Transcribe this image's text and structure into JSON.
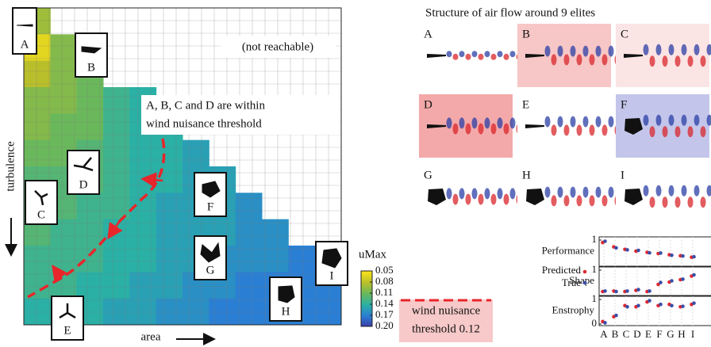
{
  "heatmap": {
    "y_label": "turbulence",
    "x_label": "area",
    "annotations": [
      "(not reachable)",
      "A, B, C and D are within",
      "wind nuisance threshold"
    ],
    "elites": [
      "A",
      "B",
      "C",
      "D",
      "E",
      "F",
      "G",
      "H",
      "I"
    ],
    "colormap": [
      "#f9e21b",
      "#b8bf2a",
      "#6ab85c",
      "#2ab0a5",
      "#2a7fd4",
      "#3b3aa8"
    ],
    "cells": [
      [
        0.09
      ],
      [
        0.06,
        0.1
      ],
      [
        0.08,
        0.1,
        0.11
      ],
      [
        0.1,
        0.1,
        0.11,
        0.13,
        0.14
      ],
      [
        0.1,
        0.11,
        0.11,
        0.13,
        0.14,
        0.14
      ],
      [
        0.11,
        0.11,
        0.12,
        0.13,
        0.14,
        0.14,
        0.15
      ],
      [
        0.12,
        0.12,
        0.12,
        0.13,
        0.14,
        0.14,
        0.15,
        0.15
      ],
      [
        0.12,
        0.12,
        0.13,
        0.13,
        0.14,
        0.15,
        0.15,
        0.15,
        0.16
      ],
      [
        0.12,
        0.13,
        0.13,
        0.14,
        0.14,
        0.15,
        0.15,
        0.15,
        0.16,
        0.16
      ],
      [
        0.13,
        0.13,
        0.13,
        0.14,
        0.14,
        0.15,
        0.15,
        0.16,
        0.16,
        0.16,
        0.17,
        0.17
      ],
      [
        0.13,
        0.13,
        0.14,
        0.14,
        0.15,
        0.15,
        0.16,
        0.16,
        0.17,
        0.17,
        0.17,
        0.17
      ],
      [
        0.14,
        0.14,
        0.14,
        0.15,
        0.15,
        0.16,
        0.16,
        0.17,
        0.17,
        0.17,
        0.17,
        0.17
      ]
    ],
    "colorbar": {
      "title": "uMax",
      "lim": [
        0.05,
        {
          "value": 0.2,
          "label": "0.20"
        }
      ],
      "ticks": [
        0.05,
        0.08,
        0.11,
        0.14,
        0.17,
        {
          "value": 0.2,
          "label": "0.20"
        }
      ]
    },
    "threshold_color": "#e8252a",
    "threshold_legend": [
      "wind nuisance",
      "threshold 0.12"
    ]
  },
  "flow": {
    "title": "Structure of air flow around 9 elites",
    "panels": [
      "A",
      "B",
      "C",
      "D",
      "E",
      "F",
      "G",
      "H",
      "I"
    ]
  },
  "predictions": {
    "categories": [
      "A",
      "B",
      "C",
      "D",
      "E",
      "F",
      "G",
      "H",
      "I"
    ],
    "legend": {
      "predicted": "Predicted",
      "true": "True"
    },
    "colors": {
      "predicted": "#e0282e",
      "true": "#3a4fa8"
    },
    "panels": [
      {
        "label": "Performance",
        "ylim": [
          0,
          1
        ],
        "yticks": [
          1
        ],
        "predicted": [
          0.9,
          0.72,
          0.62,
          0.55,
          0.5,
          0.45,
          0.4,
          0.36,
          0.3
        ],
        "true": [
          0.95,
          0.68,
          0.6,
          0.58,
          0.48,
          0.47,
          0.38,
          0.35,
          0.32
        ]
      },
      {
        "label": "Shape",
        "ylim": [
          0,
          1
        ],
        "yticks": [
          1
        ],
        "predicted": [
          0.1,
          0.12,
          0.1,
          0.15,
          0.1,
          0.4,
          0.5,
          0.6,
          0.75
        ],
        "true": [
          0.12,
          0.1,
          0.12,
          0.18,
          0.12,
          0.48,
          0.55,
          0.62,
          0.8
        ]
      },
      {
        "label": "Enstrophy",
        "ylim": [
          0,
          1
        ],
        "yticks": [
          0,
          1
        ],
        "predicted": [
          0.1,
          0.3,
          0.75,
          0.7,
          0.9,
          0.75,
          0.8,
          0.7,
          0.8
        ],
        "true": [
          0.05,
          0.35,
          0.7,
          0.75,
          0.95,
          0.8,
          0.75,
          0.72,
          0.85
        ]
      }
    ]
  }
}
